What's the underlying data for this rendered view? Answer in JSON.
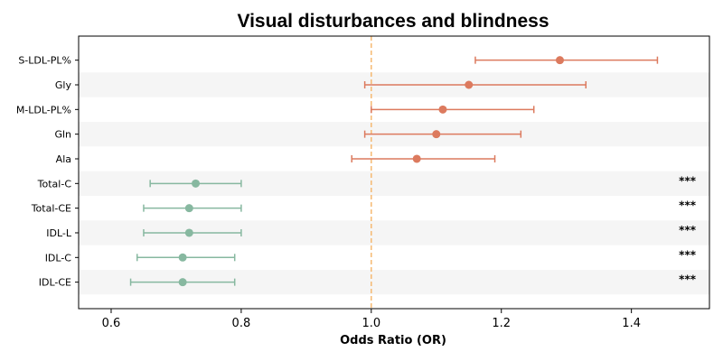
{
  "chart_data": {
    "type": "scatter",
    "subtype": "forest-plot",
    "title": "Visual disturbances and blindness",
    "xlabel": "Odds Ratio (OR)",
    "ylabel": "",
    "xlim": [
      0.55,
      1.52
    ],
    "xticks": [
      0.6,
      0.8,
      1.0,
      1.2,
      1.4
    ],
    "xtick_labels": [
      "0.6",
      "0.8",
      "1.0",
      "1.2",
      "1.4"
    ],
    "reference_line": 1.0,
    "reference_color": "#f5b971",
    "grid": false,
    "legend": "none",
    "colors": {
      "increased": "#dc7a5e",
      "decreased": "#87b8a0",
      "band": "#f5f5f5"
    },
    "rows": [
      {
        "label": "S-LDL-PL%",
        "or": 1.29,
        "lower": 1.16,
        "upper": 1.44,
        "sig": "",
        "group": "increased"
      },
      {
        "label": "Gly",
        "or": 1.15,
        "lower": 0.99,
        "upper": 1.33,
        "sig": "",
        "group": "increased"
      },
      {
        "label": "M-LDL-PL%",
        "or": 1.11,
        "lower": 1.0,
        "upper": 1.25,
        "sig": "",
        "group": "increased"
      },
      {
        "label": "Gln",
        "or": 1.1,
        "lower": 0.99,
        "upper": 1.23,
        "sig": "",
        "group": "increased"
      },
      {
        "label": "Ala",
        "or": 1.07,
        "lower": 0.97,
        "upper": 1.19,
        "sig": "",
        "group": "increased"
      },
      {
        "label": "Total-C",
        "or": 0.73,
        "lower": 0.66,
        "upper": 0.8,
        "sig": "***",
        "group": "decreased"
      },
      {
        "label": "Total-CE",
        "or": 0.72,
        "lower": 0.65,
        "upper": 0.8,
        "sig": "***",
        "group": "decreased"
      },
      {
        "label": "IDL-L",
        "or": 0.72,
        "lower": 0.65,
        "upper": 0.8,
        "sig": "***",
        "group": "decreased"
      },
      {
        "label": "IDL-C",
        "or": 0.71,
        "lower": 0.64,
        "upper": 0.79,
        "sig": "***",
        "group": "decreased"
      },
      {
        "label": "IDL-CE",
        "or": 0.71,
        "lower": 0.63,
        "upper": 0.79,
        "sig": "***",
        "group": "decreased"
      }
    ]
  }
}
